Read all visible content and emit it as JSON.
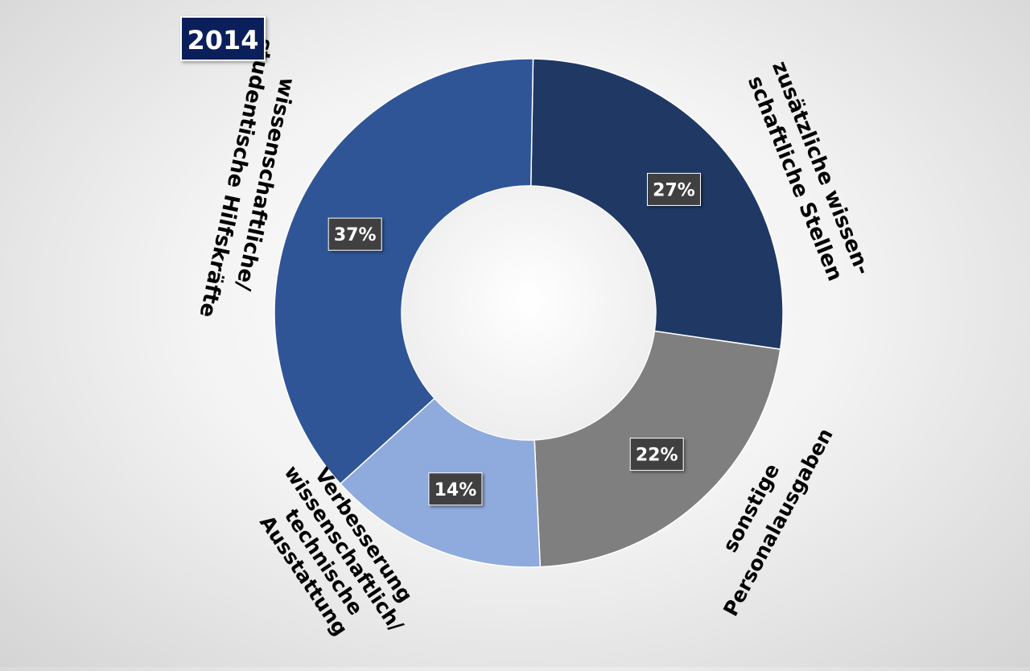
{
  "badge": {
    "label": "2014"
  },
  "chart_data": {
    "type": "pie",
    "variant": "donut",
    "direction": "clockwise from top",
    "slices": [
      {
        "label": "zusätzliche wissen-schaftliche Stellen",
        "label_lines": [
          "zusätzliche wissen-",
          "schaftliche Stellen"
        ],
        "value": 27,
        "value_label": "27%",
        "color": "#203864"
      },
      {
        "label": "sonstige Personalausgaben",
        "label_lines": [
          "sonstige",
          "Personalausgaben"
        ],
        "value": 22,
        "value_label": "22%",
        "color": "#7f7f7f"
      },
      {
        "label": "Verbesserung wissenschaftlich/ technische Ausstattung",
        "label_lines": [
          "Verbesserung",
          "wissenschaftlich/",
          "technische",
          "Ausstattung"
        ],
        "value": 14,
        "value_label": "14%",
        "color": "#8faadc"
      },
      {
        "label": "wissenschaftliche/ studentische Hilfskräfte",
        "label_lines": [
          "wissenschaftliche/",
          "studentische Hilfskräfte"
        ],
        "value": 37,
        "value_label": "37%",
        "color": "#2f5597"
      }
    ]
  }
}
